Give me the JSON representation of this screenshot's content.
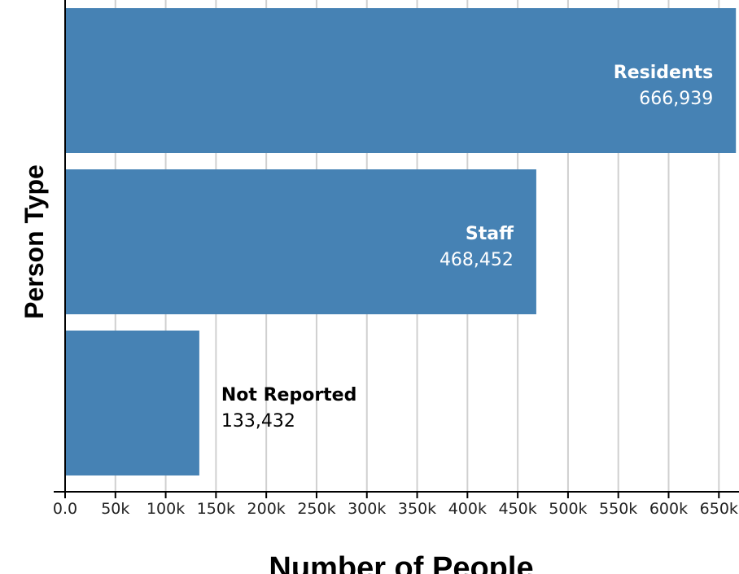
{
  "chart_data": {
    "type": "bar",
    "orientation": "horizontal",
    "categories": [
      "Residents",
      "Staff",
      "Not Reported"
    ],
    "values": [
      666939,
      468452,
      133432
    ],
    "value_labels": [
      "666,939",
      "468,452",
      "133,432"
    ],
    "xlabel": "Number of People",
    "ylabel": "Person Type",
    "xlim": [
      0,
      670000
    ],
    "x_ticks": [
      0,
      50000,
      100000,
      150000,
      200000,
      250000,
      300000,
      350000,
      400000,
      450000,
      500000,
      550000,
      600000,
      650000
    ],
    "x_tick_labels": [
      "0.0",
      "50k",
      "100k",
      "150k",
      "200k",
      "250k",
      "300k",
      "350k",
      "400k",
      "450k",
      "500k",
      "550k",
      "600k",
      "650k"
    ],
    "grid": true,
    "bar_color": "#4682b4",
    "label_color_inside": "#ffffff",
    "label_color_outside": "#000000"
  }
}
